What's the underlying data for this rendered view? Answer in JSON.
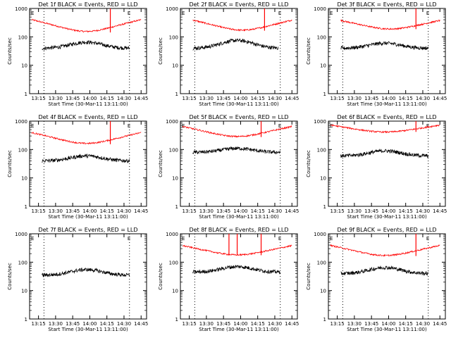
{
  "chart_data": [
    {
      "type": "line",
      "title": "Det 1f BLACK = Events, RED = LLD",
      "xlabel": "Start Time (30-Mar-11 13:11:00)",
      "ylabel": "Counts/sec",
      "yscale": "log",
      "ylim": [
        1,
        1000
      ],
      "xticks": [
        "13:15",
        "13:30",
        "13:45",
        "14:00",
        "14:15",
        "14:30",
        "14:45"
      ],
      "yticks": [
        "1",
        "10",
        "100",
        "1000"
      ],
      "series": [
        {
          "color": "#ff0000",
          "base": 300,
          "dip": 130,
          "spikes": [
            {
              "t": 14.3,
              "v": 1000
            }
          ],
          "start": 13.15,
          "end": 14.75
        },
        {
          "color": "#000000",
          "base": 40,
          "hump": 65,
          "start": 13.3,
          "end": 14.58
        }
      ],
      "markers": [
        "E",
        "E"
      ],
      "vlines": [
        13.33,
        14.58
      ]
    },
    {
      "type": "line",
      "title": "Det 2f BLACK = Events, RED = LLD",
      "xlabel": "Start Time (30-Mar-11 13:11:00)",
      "ylabel": "Counts/sec",
      "yscale": "log",
      "ylim": [
        1,
        1000
      ],
      "xticks": [
        "13:15",
        "13:30",
        "13:45",
        "14:00",
        "14:15",
        "14:30",
        "14:45"
      ],
      "yticks": [
        "1",
        "10",
        "100",
        "1000"
      ],
      "series": [
        {
          "color": "#ff0000",
          "base": 300,
          "dip": 150,
          "spikes": [
            {
              "t": 14.35,
              "v": 1000
            }
          ],
          "start": 13.3,
          "end": 14.75
        },
        {
          "color": "#000000",
          "base": 40,
          "hump": 75,
          "start": 13.3,
          "end": 14.55
        }
      ],
      "markers": [
        "E",
        "E"
      ],
      "vlines": [
        13.33,
        14.58
      ]
    },
    {
      "type": "line",
      "title": "Det 3f BLACK = Events, RED = LLD",
      "xlabel": "Start Time (30-Mar-11 13:11:00)",
      "ylabel": "Counts/sec",
      "yscale": "log",
      "ylim": [
        1,
        1000
      ],
      "xticks": [
        "13:15",
        "13:30",
        "13:45",
        "14:00",
        "14:15",
        "14:30",
        "14:45"
      ],
      "yticks": [
        "1",
        "10",
        "100",
        "1000"
      ],
      "series": [
        {
          "color": "#ff0000",
          "base": 300,
          "dip": 170,
          "spikes": [
            {
              "t": 14.4,
              "v": 1000
            }
          ],
          "start": 13.3,
          "end": 14.75
        },
        {
          "color": "#000000",
          "base": 40,
          "hump": 60,
          "start": 13.3,
          "end": 14.58
        }
      ],
      "markers": [
        "E",
        "E"
      ],
      "vlines": [
        13.33,
        14.58
      ]
    },
    {
      "type": "line",
      "title": "Det 4f BLACK = Events, RED = LLD",
      "xlabel": "Start Time (30-Mar-11 13:11:00)",
      "ylabel": "Counts/sec",
      "yscale": "log",
      "ylim": [
        1,
        1000
      ],
      "xticks": [
        "13:15",
        "13:30",
        "13:45",
        "14:00",
        "14:15",
        "14:30",
        "14:45"
      ],
      "yticks": [
        "1",
        "10",
        "100",
        "1000"
      ],
      "series": [
        {
          "color": "#ff0000",
          "base": 300,
          "dip": 140,
          "spikes": [
            {
              "t": 14.3,
              "v": 1000
            }
          ],
          "start": 13.15,
          "end": 14.75
        },
        {
          "color": "#000000",
          "base": 40,
          "hump": 60,
          "start": 13.3,
          "end": 14.58
        }
      ],
      "markers": [
        "E",
        "E"
      ],
      "vlines": [
        13.33,
        14.58
      ]
    },
    {
      "type": "line",
      "title": "Det 5f BLACK = Events, RED = LLD",
      "xlabel": "Start Time (30-Mar-11 13:11:00)",
      "ylabel": "Counts/sec",
      "yscale": "log",
      "ylim": [
        1,
        1000
      ],
      "xticks": [
        "13:15",
        "13:30",
        "13:45",
        "14:00",
        "14:15",
        "14:30",
        "14:45"
      ],
      "yticks": [
        "1",
        "10",
        "100",
        "1000"
      ],
      "series": [
        {
          "color": "#ff0000",
          "base": 500,
          "dip": 250,
          "spikes": [
            {
              "t": 14.3,
              "v": 1000
            }
          ],
          "start": 13.15,
          "end": 14.75
        },
        {
          "color": "#000000",
          "base": 80,
          "hump": 110,
          "start": 13.3,
          "end": 14.58
        }
      ],
      "markers": [
        "E",
        "E"
      ],
      "vlines": [
        13.33,
        14.58
      ]
    },
    {
      "type": "line",
      "title": "Det 6f BLACK = Events, RED = LLD",
      "xlabel": "Start Time (30-Mar-11 13:11:00)",
      "ylabel": "Counts/sec",
      "yscale": "log",
      "ylim": [
        1,
        1000
      ],
      "xticks": [
        "13:15",
        "13:30",
        "13:45",
        "14:00",
        "14:15",
        "14:30",
        "14:45"
      ],
      "yticks": [
        "1",
        "10",
        "100",
        "1000"
      ],
      "series": [
        {
          "color": "#ff0000",
          "base": 600,
          "dip": 380,
          "spikes": [
            {
              "t": 14.4,
              "v": 1000
            }
          ],
          "start": 13.15,
          "end": 14.75
        },
        {
          "color": "#000000",
          "base": 60,
          "hump": 90,
          "start": 13.3,
          "end": 14.58
        }
      ],
      "markers": [
        "E",
        "E"
      ],
      "vlines": [
        13.33,
        14.58
      ]
    },
    {
      "type": "line",
      "title": "Det 7f BLACK = Events, RED = LLD",
      "xlabel": "Start Time (30-Mar-11 13:11:00)",
      "ylabel": "Counts/sec",
      "yscale": "log",
      "ylim": [
        1,
        1000
      ],
      "xticks": [
        "13:15",
        "13:30",
        "13:45",
        "14:00",
        "14:15",
        "14:30",
        "14:45"
      ],
      "yticks": [
        "1",
        "10",
        "100",
        "1000"
      ],
      "series": [
        {
          "color": "#000000",
          "base": 35,
          "hump": 55,
          "start": 13.3,
          "end": 14.58
        }
      ],
      "markers": [
        "E",
        "E"
      ],
      "vlines": [
        13.33,
        14.58
      ]
    },
    {
      "type": "line",
      "title": "Det 8f BLACK = Events, RED = LLD",
      "xlabel": "Start Time (30-Mar-11 13:11:00)",
      "ylabel": "Counts/sec",
      "yscale": "log",
      "ylim": [
        1,
        1000
      ],
      "xticks": [
        "13:15",
        "13:30",
        "13:45",
        "14:00",
        "14:15",
        "14:30",
        "14:45"
      ],
      "yticks": [
        "1",
        "10",
        "100",
        "1000"
      ],
      "series": [
        {
          "color": "#ff0000",
          "base": 300,
          "dip": 160,
          "spikes": [
            {
              "t": 13.83,
              "v": 1000
            },
            {
              "t": 13.95,
              "v": 1000
            },
            {
              "t": 14.3,
              "v": 1000
            }
          ],
          "start": 13.15,
          "end": 14.75
        },
        {
          "color": "#000000",
          "base": 45,
          "hump": 70,
          "start": 13.3,
          "end": 14.58
        }
      ],
      "markers": [
        "E",
        "E"
      ],
      "vlines": [
        13.33,
        14.58
      ]
    },
    {
      "type": "line",
      "title": "Det 9f BLACK = Events, RED = LLD",
      "xlabel": "Start Time (30-Mar-11 13:11:00)",
      "ylabel": "Counts/sec",
      "yscale": "log",
      "ylim": [
        1,
        1000
      ],
      "xticks": [
        "13:15",
        "13:30",
        "13:45",
        "14:00",
        "14:15",
        "14:30",
        "14:45"
      ],
      "yticks": [
        "1",
        "10",
        "100",
        "1000"
      ],
      "series": [
        {
          "color": "#ff0000",
          "base": 300,
          "dip": 150,
          "spikes": [
            {
              "t": 14.4,
              "v": 1000
            }
          ],
          "start": 13.15,
          "end": 14.75
        },
        {
          "color": "#000000",
          "base": 40,
          "hump": 65,
          "start": 13.3,
          "end": 14.58
        }
      ],
      "markers": [
        "E",
        "E"
      ],
      "vlines": [
        13.33,
        14.58
      ]
    }
  ]
}
